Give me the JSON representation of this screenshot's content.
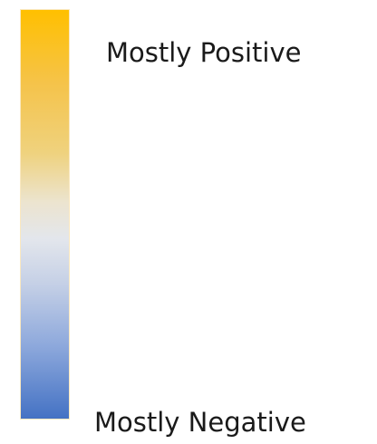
{
  "scale": {
    "top_label": "Mostly Positive",
    "bottom_label": "Mostly Negative",
    "colors": {
      "top": "#ffc000",
      "middle": "#e8e8e8",
      "bottom": "#4472c4",
      "border": "#fae8c0"
    }
  }
}
